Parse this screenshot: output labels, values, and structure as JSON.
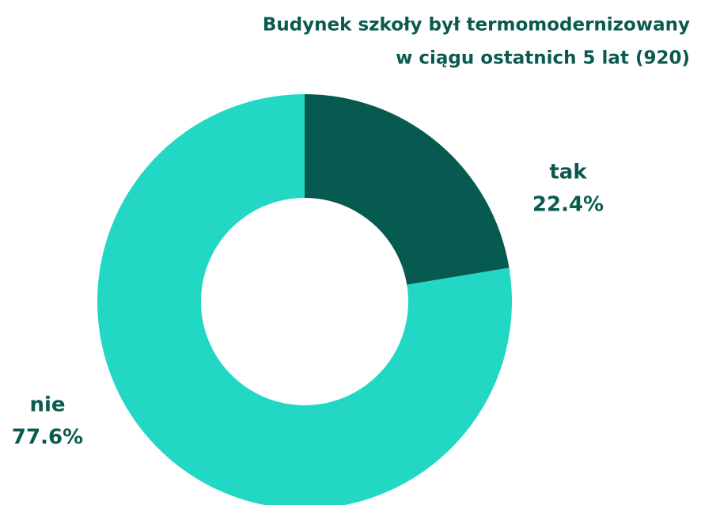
{
  "chart_data": {
    "type": "donut",
    "title": [
      "Budynek szkoły był termomodernizowany",
      "w ciągu ostatnich 5 lat (920)"
    ],
    "categories": [
      "tak",
      "nie"
    ],
    "values": [
      22.4,
      77.6
    ],
    "value_labels": [
      "22.4%",
      "77.6%"
    ],
    "colors": [
      "#065a4f",
      "#22d8c4"
    ]
  }
}
